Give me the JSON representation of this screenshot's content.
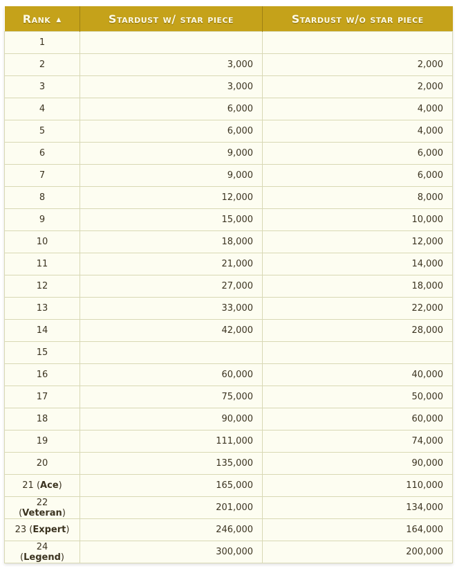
{
  "headers": {
    "rank": "Rank",
    "with": "Stardust w/ star piece",
    "without": "Stardust w/o star piece",
    "sort_indicator": "▲"
  },
  "colors": {
    "header_bg": "#c5a21a",
    "cell_bg": "#fdfdf1",
    "border": "#d8d8b4"
  },
  "rows": [
    {
      "rank": "1",
      "title": "",
      "with": "",
      "without": ""
    },
    {
      "rank": "2",
      "title": "",
      "with": "3,000",
      "without": "2,000"
    },
    {
      "rank": "3",
      "title": "",
      "with": "3,000",
      "without": "2,000"
    },
    {
      "rank": "4",
      "title": "",
      "with": "6,000",
      "without": "4,000"
    },
    {
      "rank": "5",
      "title": "",
      "with": "6,000",
      "without": "4,000"
    },
    {
      "rank": "6",
      "title": "",
      "with": "9,000",
      "without": "6,000"
    },
    {
      "rank": "7",
      "title": "",
      "with": "9,000",
      "without": "6,000"
    },
    {
      "rank": "8",
      "title": "",
      "with": "12,000",
      "without": "8,000"
    },
    {
      "rank": "9",
      "title": "",
      "with": "15,000",
      "without": "10,000"
    },
    {
      "rank": "10",
      "title": "",
      "with": "18,000",
      "without": "12,000"
    },
    {
      "rank": "11",
      "title": "",
      "with": "21,000",
      "without": "14,000"
    },
    {
      "rank": "12",
      "title": "",
      "with": "27,000",
      "without": "18,000"
    },
    {
      "rank": "13",
      "title": "",
      "with": "33,000",
      "without": "22,000"
    },
    {
      "rank": "14",
      "title": "",
      "with": "42,000",
      "without": "28,000"
    },
    {
      "rank": "15",
      "title": "",
      "with": "",
      "without": ""
    },
    {
      "rank": "16",
      "title": "",
      "with": "60,000",
      "without": "40,000"
    },
    {
      "rank": "17",
      "title": "",
      "with": "75,000",
      "without": "50,000"
    },
    {
      "rank": "18",
      "title": "",
      "with": "90,000",
      "without": "60,000"
    },
    {
      "rank": "19",
      "title": "",
      "with": "111,000",
      "without": "74,000"
    },
    {
      "rank": "20",
      "title": "",
      "with": "135,000",
      "without": "90,000"
    },
    {
      "rank": "21",
      "title": "Ace",
      "with": "165,000",
      "without": "110,000"
    },
    {
      "rank": "22",
      "title": "Veteran",
      "with": "201,000",
      "without": "134,000"
    },
    {
      "rank": "23",
      "title": "Expert",
      "with": "246,000",
      "without": "164,000"
    },
    {
      "rank": "24",
      "title": "Legend",
      "with": "300,000",
      "without": "200,000"
    }
  ]
}
